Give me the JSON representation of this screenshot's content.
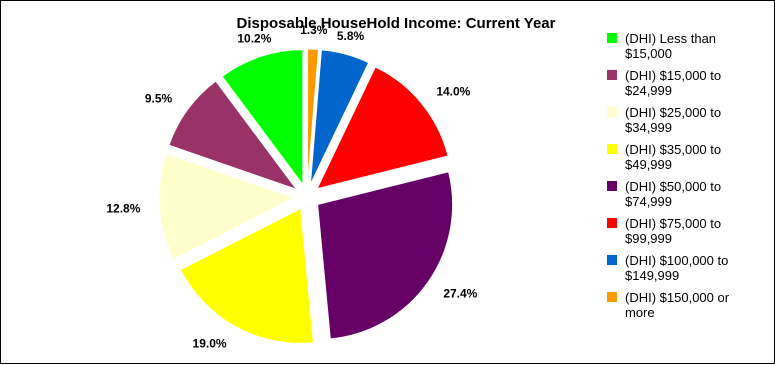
{
  "chart_data": {
    "type": "pie",
    "title": "Disposable HouseHold Income: Current Year",
    "slices": [
      {
        "legend": [
          "(DHI) Less than",
          "$15,000"
        ],
        "value": 10.2,
        "label": "10.2%",
        "color": "#00ff00"
      },
      {
        "legend": [
          "(DHI) $15,000 to",
          "$24,999"
        ],
        "value": 9.5,
        "label": "9.5%",
        "color": "#993366"
      },
      {
        "legend": [
          "(DHI) $25,000 to",
          "$34,999"
        ],
        "value": 12.8,
        "label": "12.8%",
        "color": "#ffffcc"
      },
      {
        "legend": [
          "(DHI) $35,000 to",
          "$49,999"
        ],
        "value": 19.0,
        "label": "19.0%",
        "color": "#ffff00"
      },
      {
        "legend": [
          "(DHI) $50,000 to",
          "$74,999"
        ],
        "value": 27.4,
        "label": "27.4%",
        "color": "#660066"
      },
      {
        "legend": [
          "(DHI) $75,000 to",
          "$99,999"
        ],
        "value": 14.0,
        "label": "14.0%",
        "color": "#ff0000"
      },
      {
        "legend": [
          "(DHI) $100,000 to",
          "$149,999"
        ],
        "value": 5.8,
        "label": "5.8%",
        "color": "#0066cc"
      },
      {
        "legend": [
          "(DHI) $150,000 or",
          "more"
        ],
        "value": 1.3,
        "label": "1.3%",
        "color": "#ff9900"
      }
    ],
    "legend_position": "right"
  }
}
